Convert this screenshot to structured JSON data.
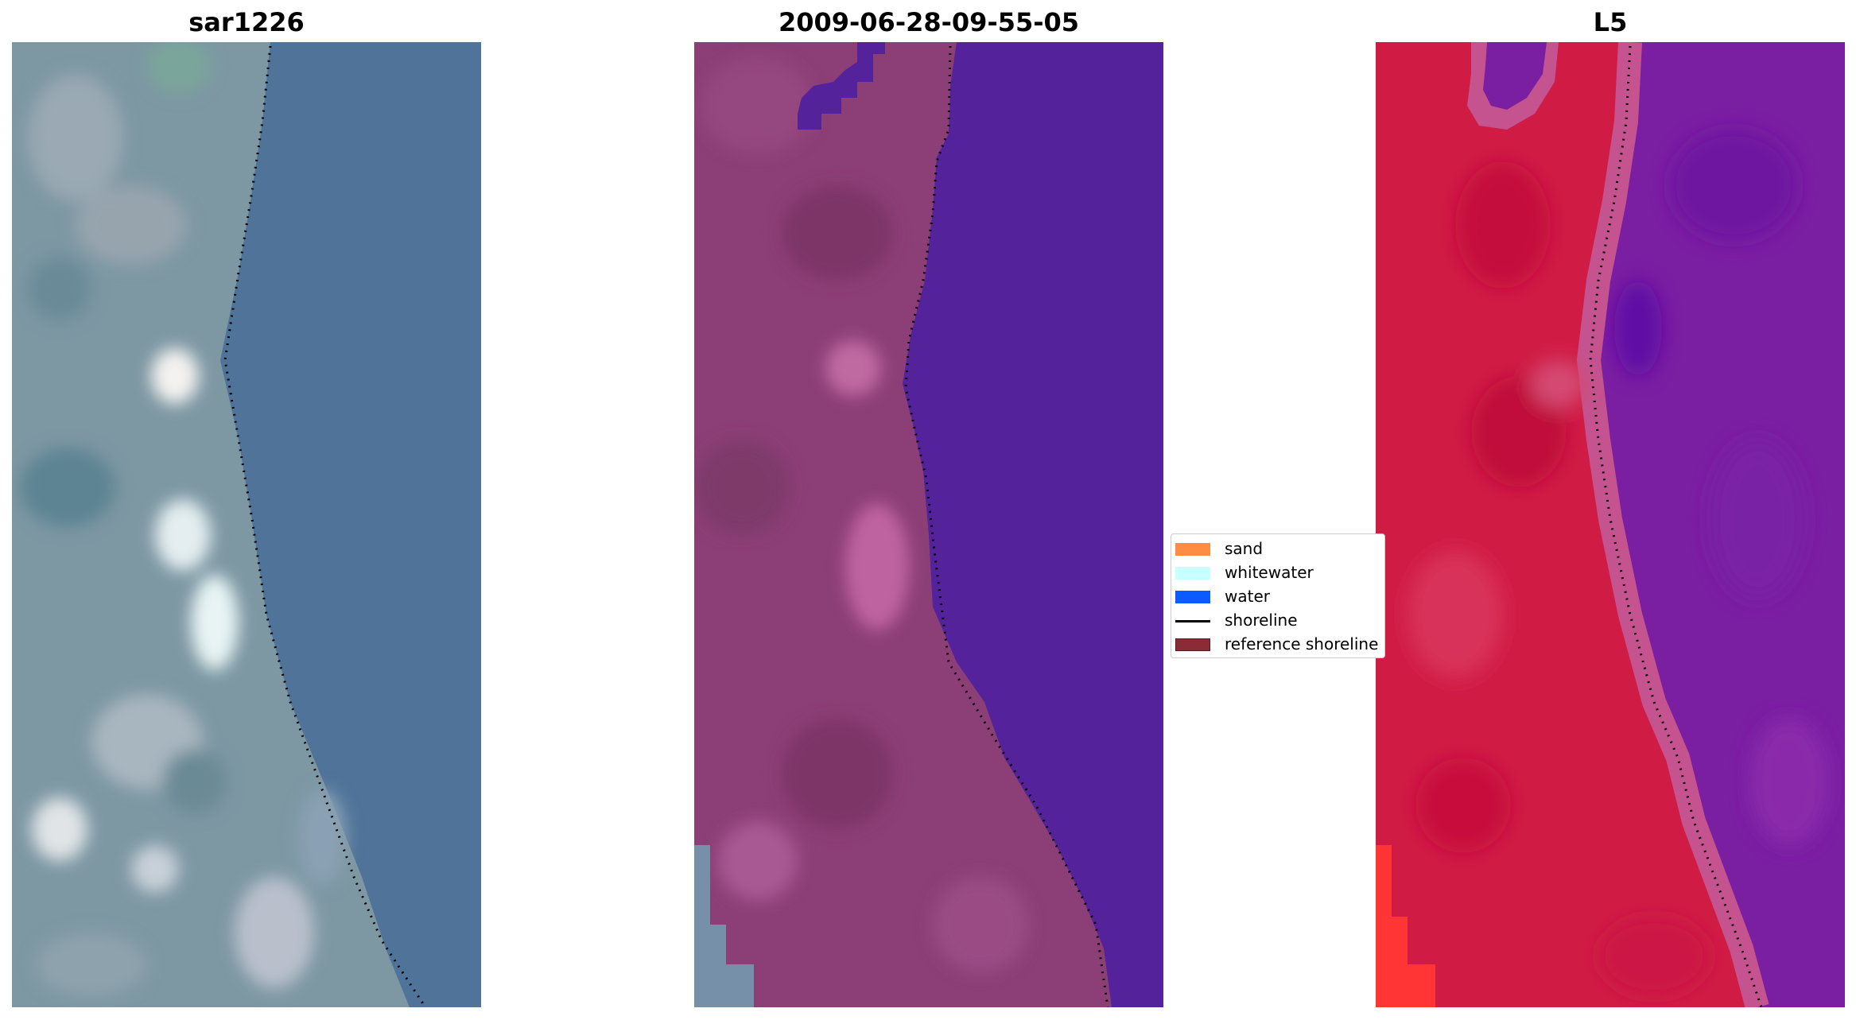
{
  "panels": [
    {
      "title": "sar1226"
    },
    {
      "title": "2009-06-28-09-55-05"
    },
    {
      "title": "L5"
    }
  ],
  "legend": {
    "items": [
      {
        "label": "sand",
        "color": "#ff8c42",
        "kind": "patch"
      },
      {
        "label": "whitewater",
        "color": "#c8ffff",
        "kind": "patch"
      },
      {
        "label": "water",
        "color": "#0a5cff",
        "kind": "patch"
      },
      {
        "label": "shoreline",
        "color": "#000000",
        "kind": "line"
      },
      {
        "label": "reference shoreline",
        "color": "#8b2b35",
        "kind": "patch"
      }
    ]
  },
  "colors": {
    "rgb_land": "#7d97a3",
    "rgb_water": "#4f7399",
    "class_land": "#8c3e76",
    "class_water": "#54229a",
    "l5_land": "#d01c45",
    "l5_water": "#7a1ea2"
  }
}
